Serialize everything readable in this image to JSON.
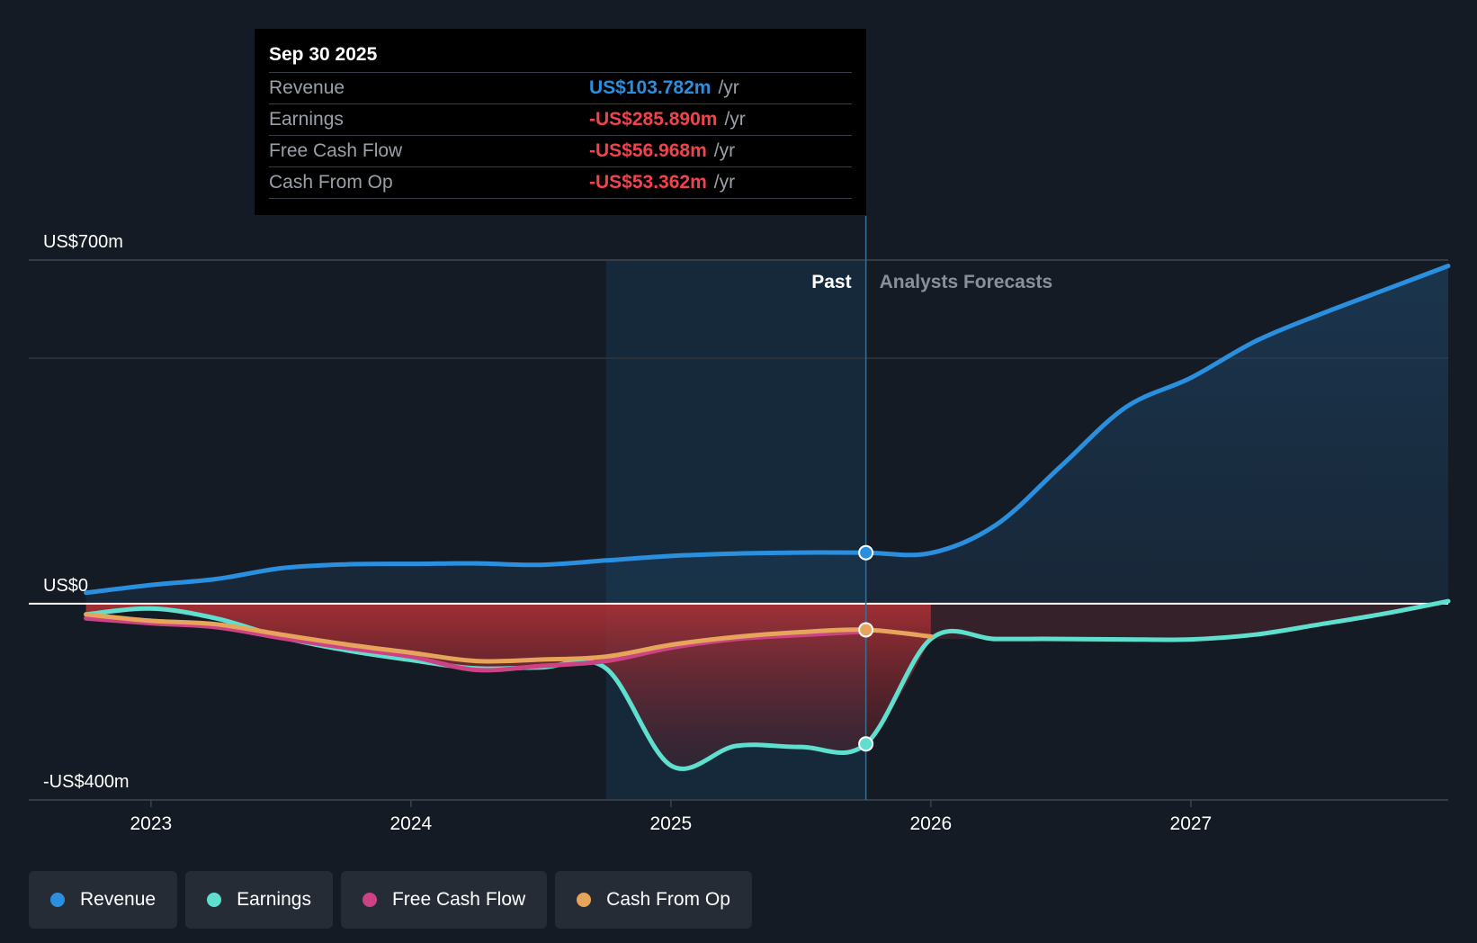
{
  "colors": {
    "revenue": "#2a8fde",
    "earnings": "#5fe0cf",
    "fcf": "#cc4385",
    "cfo": "#e6a55a",
    "negative_text": "#f0434d",
    "revenue_text": "#2a8fde"
  },
  "tooltip": {
    "date": "Sep 30 2025",
    "rows": [
      {
        "label": "Revenue",
        "value": "US$103.782m",
        "unit": "/yr"
      },
      {
        "label": "Earnings",
        "value": "-US$285.890m",
        "unit": "/yr"
      },
      {
        "label": "Free Cash Flow",
        "value": "-US$56.968m",
        "unit": "/yr"
      },
      {
        "label": "Cash From Op",
        "value": "-US$53.362m",
        "unit": "/yr"
      }
    ]
  },
  "legend": [
    {
      "label": "Revenue",
      "color": "#2a8fde"
    },
    {
      "label": "Earnings",
      "color": "#5fe0cf"
    },
    {
      "label": "Free Cash Flow",
      "color": "#cc4385"
    },
    {
      "label": "Cash From Op",
      "color": "#e6a55a"
    }
  ],
  "chart_data": {
    "type": "line",
    "title": "",
    "y_tick_labels": [
      "US$700m",
      "US$0",
      "-US$400m"
    ],
    "x_tick_labels": [
      "2023",
      "2024",
      "2025",
      "2026",
      "2027"
    ],
    "x_ticks": [
      2023.0,
      2024.0,
      2025.0,
      2026.0,
      2027.0
    ],
    "xlim": [
      2022.53,
      2027.99
    ],
    "ylim": [
      -400,
      700
    ],
    "gridlines": [
      700,
      500,
      0,
      -400
    ],
    "divider_x": 2025.75,
    "highlight_start_x": 2024.75,
    "past_label": "Past",
    "forecast_label": "Analysts Forecasts",
    "series": [
      {
        "name": "Revenue",
        "key": "revenue",
        "points": [
          [
            2022.75,
            22
          ],
          [
            2023.0,
            38
          ],
          [
            2023.25,
            50
          ],
          [
            2023.5,
            72
          ],
          [
            2023.75,
            80
          ],
          [
            2024.0,
            81
          ],
          [
            2024.25,
            82
          ],
          [
            2024.5,
            79
          ],
          [
            2024.75,
            88
          ],
          [
            2025.0,
            97
          ],
          [
            2025.25,
            102
          ],
          [
            2025.5,
            104
          ],
          [
            2025.75,
            103.8
          ],
          [
            2026.0,
            103
          ],
          [
            2026.25,
            160
          ],
          [
            2026.5,
            280
          ],
          [
            2026.75,
            400
          ],
          [
            2027.0,
            460
          ],
          [
            2027.25,
            535
          ],
          [
            2027.5,
            590
          ],
          [
            2027.75,
            640
          ],
          [
            2027.99,
            688
          ]
        ]
      },
      {
        "name": "Earnings",
        "key": "earnings",
        "points": [
          [
            2022.75,
            -22
          ],
          [
            2023.0,
            -10
          ],
          [
            2023.25,
            -30
          ],
          [
            2023.5,
            -68
          ],
          [
            2023.75,
            -95
          ],
          [
            2024.0,
            -115
          ],
          [
            2024.25,
            -132
          ],
          [
            2024.5,
            -130
          ],
          [
            2024.75,
            -132
          ],
          [
            2025.0,
            -330
          ],
          [
            2025.25,
            -290
          ],
          [
            2025.5,
            -292
          ],
          [
            2025.75,
            -285.9
          ],
          [
            2026.0,
            -72
          ],
          [
            2026.25,
            -72
          ],
          [
            2026.5,
            -72
          ],
          [
            2026.75,
            -73
          ],
          [
            2027.0,
            -73
          ],
          [
            2027.25,
            -63
          ],
          [
            2027.5,
            -42
          ],
          [
            2027.75,
            -20
          ],
          [
            2027.99,
            5
          ]
        ]
      },
      {
        "name": "Free Cash Flow",
        "key": "fcf",
        "points": [
          [
            2022.75,
            -30
          ],
          [
            2023.0,
            -40
          ],
          [
            2023.25,
            -48
          ],
          [
            2023.5,
            -70
          ],
          [
            2023.75,
            -90
          ],
          [
            2024.0,
            -108
          ],
          [
            2024.25,
            -135
          ],
          [
            2024.5,
            -127
          ],
          [
            2024.75,
            -117
          ],
          [
            2025.0,
            -90
          ],
          [
            2025.25,
            -72
          ],
          [
            2025.5,
            -64
          ],
          [
            2025.75,
            -57
          ]
        ]
      },
      {
        "name": "Cash From Op",
        "key": "cfo",
        "points": [
          [
            2022.75,
            -22
          ],
          [
            2023.0,
            -35
          ],
          [
            2023.25,
            -42
          ],
          [
            2023.5,
            -63
          ],
          [
            2023.75,
            -83
          ],
          [
            2024.0,
            -100
          ],
          [
            2024.25,
            -117
          ],
          [
            2024.5,
            -114
          ],
          [
            2024.75,
            -108
          ],
          [
            2025.0,
            -84
          ],
          [
            2025.25,
            -68
          ],
          [
            2025.5,
            -58
          ],
          [
            2025.75,
            -53.4
          ],
          [
            2026.0,
            -67
          ]
        ]
      }
    ]
  }
}
